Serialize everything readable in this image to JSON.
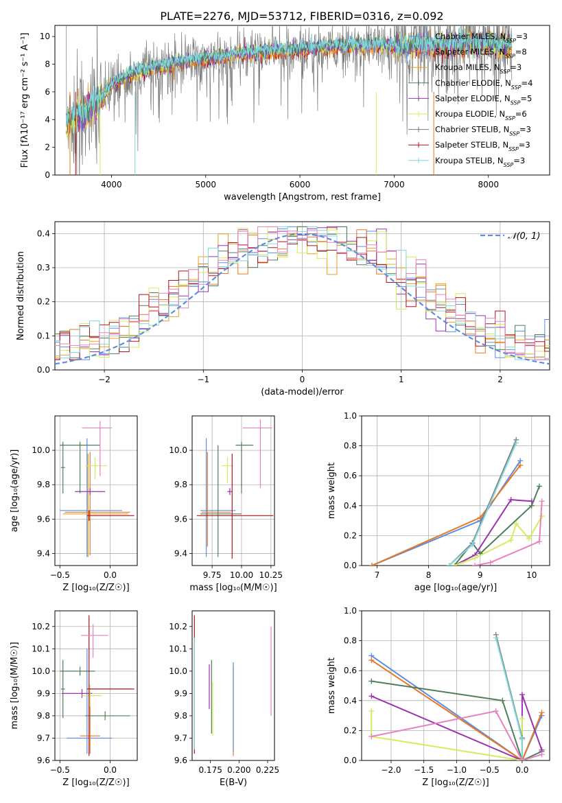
{
  "figure": {
    "title": "PLATE=2276, MJD=53712, FIBERID=0316, z=0.092"
  },
  "colors": {
    "chabrier_miles": "#5b8de0",
    "salpeter_miles": "#e87722",
    "kroupa_miles": "#e8a020",
    "chabrier_elodie": "#4f7d5a",
    "salpeter_elodie": "#9b30b0",
    "kroupa_elodie": "#d4ec5c",
    "chabrier_stelib": "#7a7a7a",
    "salpeter_stelib": "#b01020",
    "kroupa_stelib": "#7fd8dc",
    "pink": "#e880c0",
    "grid": "#b0b0b0",
    "gauss": "#5b8de0"
  },
  "chart_data": [
    {
      "id": "spectrum",
      "type": "line",
      "xlabel": "wavelength [Angstrom, rest frame]",
      "ylabel": "Flux [fλ10⁻¹⁷ erg cm⁻² s⁻¹ A⁻¹]",
      "xlim": [
        3400,
        8650
      ],
      "ylim": [
        0,
        10.8
      ],
      "xticks": [
        4000,
        5000,
        6000,
        7000,
        8000
      ],
      "yticks": [
        0,
        2,
        4,
        6,
        8,
        10
      ],
      "grid": false,
      "legend_position": "right",
      "legend": [
        "Chabrier MILES, N_SSP=3",
        "Salpeter MILES, N_SSP=8",
        "Kroupa MILES, N_SSP=3",
        "Chabrier ELODIE, N_SSP=4",
        "Salpeter ELODIE, N_SSP=5",
        "Kroupa ELODIE, N_SSP=6",
        "Chabrier STELIB, N_SSP=3",
        "Salpeter STELIB, N_SSP=3",
        "Kroupa STELIB, N_SSP=3"
      ],
      "continuum": {
        "x": [
          3520,
          3600,
          3700,
          3800,
          3900,
          4000,
          4100,
          4300,
          4500,
          4700,
          5000,
          5300,
          5600,
          6000,
          6400,
          6800,
          7200,
          7500,
          8000,
          8250
        ],
        "y": [
          3.8,
          4.2,
          4.5,
          5.0,
          5.6,
          6.5,
          7.0,
          7.5,
          7.8,
          8.1,
          8.4,
          8.7,
          8.9,
          9.1,
          9.3,
          9.4,
          9.3,
          9.4,
          9.5,
          9.3
        ]
      }
    },
    {
      "id": "residuals",
      "type": "bar",
      "xlabel": "(data-model)/error",
      "ylabel": "Normed distribution",
      "xlim": [
        -2.5,
        2.5
      ],
      "ylim": [
        0,
        0.435
      ],
      "xticks": [
        -2,
        -1,
        0,
        1,
        2
      ],
      "yticks": [
        0.0,
        0.1,
        0.2,
        0.3,
        0.4
      ],
      "grid": true,
      "legend": [
        "𝒩(0, 1)"
      ],
      "legend_position": "top-right",
      "bin_width": 0.1
    },
    {
      "id": "age_vs_Z",
      "type": "scatter",
      "xlabel": "Z [log₁₀(Z/Z☉)]",
      "ylabel": "age  [log₁₀(age/yr)]",
      "xlim": [
        -0.55,
        0.27
      ],
      "ylim": [
        9.33,
        10.2
      ],
      "xticks": [
        -0.5,
        0.0
      ],
      "yticks": [
        9.4,
        9.6,
        9.8,
        10.0
      ],
      "grid": true,
      "points": [
        {
          "series": "chabrier_miles",
          "x": -0.23,
          "xerr": [
            0.27,
            0.35
          ],
          "y": 9.65,
          "yerr": [
            0.27,
            0.42
          ]
        },
        {
          "series": "salpeter_miles",
          "x": -0.2,
          "xerr": [
            0.25,
            0.4
          ],
          "y": 9.64,
          "yerr": [
            0.25,
            0.35
          ]
        },
        {
          "series": "kroupa_miles",
          "x": -0.22,
          "xerr": [
            0.25,
            0.4
          ],
          "y": 9.63,
          "yerr": [
            0.25,
            0.35
          ]
        },
        {
          "series": "chabrier_elodie",
          "x": -0.3,
          "xerr": [
            0.2,
            0.2
          ],
          "y": 10.03,
          "yerr": [
            0.28,
            0.02
          ]
        },
        {
          "series": "chabrier_elodie",
          "x": -0.47,
          "xerr": [
            0.02,
            0.02
          ],
          "y": 9.9,
          "yerr": [
            0.15,
            0.15
          ]
        },
        {
          "series": "salpeter_elodie",
          "x": -0.2,
          "xerr": [
            0.15,
            0.15
          ],
          "y": 9.76,
          "yerr": [
            0.02,
            0.02
          ]
        },
        {
          "series": "kroupa_elodie",
          "x": -0.15,
          "xerr": [
            0.1,
            0.12
          ],
          "y": 9.91,
          "yerr": [
            0.08,
            0.05
          ]
        },
        {
          "series": "salpeter_stelib",
          "x": -0.21,
          "xerr": [
            0.02,
            0.45
          ],
          "y": 9.62,
          "yerr": [
            0.03,
            0.03
          ]
        },
        {
          "series": "pink",
          "x": -0.1,
          "xerr": [
            0.18,
            0.12
          ],
          "y": 10.13,
          "yerr": [
            0.28,
            0.04
          ]
        }
      ]
    },
    {
      "id": "age_vs_mass",
      "type": "scatter",
      "xlabel": "mass [log₁₀(M/M☉)]",
      "ylabel": "",
      "xlim": [
        9.58,
        10.28
      ],
      "ylim": [
        9.33,
        10.2
      ],
      "xticks": [
        9.75,
        10.0,
        10.25
      ],
      "yticks": [
        9.4,
        9.6,
        9.8,
        10.0
      ],
      "grid": true,
      "points": [
        {
          "series": "chabrier_miles",
          "x": 9.7,
          "xerr": [
            0.05,
            0.25
          ],
          "y": 9.65,
          "yerr": [
            0.27,
            0.42
          ]
        },
        {
          "series": "salpeter_miles",
          "x": 9.71,
          "xerr": [
            0.05,
            0.2
          ],
          "y": 9.64,
          "yerr": [
            0.2,
            0.35
          ]
        },
        {
          "series": "chabrier_elodie",
          "x": 9.8,
          "xerr": [
            0.15,
            0.2
          ],
          "y": 9.63,
          "yerr": [
            0.25,
            0.4
          ]
        },
        {
          "series": "chabrier_elodie",
          "x": 10.0,
          "xerr": [
            0.05,
            0.1
          ],
          "y": 10.03,
          "yerr": [
            0.28,
            0.02
          ]
        },
        {
          "series": "salpeter_elodie",
          "x": 9.9,
          "xerr": [
            0.02,
            0.02
          ],
          "y": 9.76,
          "yerr": [
            0.02,
            0.02
          ]
        },
        {
          "series": "kroupa_elodie",
          "x": 9.88,
          "xerr": [
            0.05,
            0.05
          ],
          "y": 9.91,
          "yerr": [
            0.1,
            0.05
          ]
        },
        {
          "series": "salpeter_stelib",
          "x": 9.92,
          "xerr": [
            0.3,
            0.35
          ],
          "y": 9.62,
          "yerr": [
            0.25,
            0.36
          ]
        },
        {
          "series": "pink",
          "x": 10.16,
          "xerr": [
            0.15,
            0.1
          ],
          "y": 10.13,
          "yerr": [
            0.35,
            0.05
          ]
        }
      ]
    },
    {
      "id": "massweight_vs_age",
      "type": "line",
      "xlabel": "age  [log₁₀(age/yr)]",
      "ylabel": "mass weight",
      "xlim": [
        6.7,
        10.35
      ],
      "ylim": [
        0,
        1.0
      ],
      "xticks": [
        7,
        8,
        9,
        10
      ],
      "yticks": [
        0.0,
        0.2,
        0.4,
        0.6,
        0.8,
        1.0
      ],
      "grid": true,
      "series": [
        {
          "name": "Chabrier MILES",
          "color": "chabrier_miles",
          "x": [
            6.9,
            9.0,
            9.78
          ],
          "y": [
            0.0,
            0.3,
            0.7
          ]
        },
        {
          "name": "Salpeter MILES",
          "color": "salpeter_miles",
          "x": [
            6.9,
            9.0,
            9.78
          ],
          "y": [
            0.0,
            0.32,
            0.67
          ]
        },
        {
          "name": "Chabrier ELODIE",
          "color": "chabrier_elodie",
          "x": [
            8.5,
            8.85,
            9.0,
            10.0,
            10.15
          ],
          "y": [
            0.0,
            0.15,
            0.08,
            0.4,
            0.53
          ]
        },
        {
          "name": "Salpeter ELODIE",
          "color": "salpeter_elodie",
          "x": [
            8.5,
            8.9,
            9.6,
            10.0
          ],
          "y": [
            0.0,
            0.07,
            0.44,
            0.43
          ]
        },
        {
          "name": "Kroupa ELODIE",
          "color": "kroupa_elodie",
          "x": [
            8.5,
            8.9,
            9.6,
            9.7,
            9.95,
            10.2
          ],
          "y": [
            0.0,
            0.05,
            0.17,
            0.28,
            0.18,
            0.33
          ]
        },
        {
          "name": "Chabrier STELIB",
          "color": "chabrier_stelib",
          "x": [
            8.4,
            8.85,
            9.7
          ],
          "y": [
            0.0,
            0.15,
            0.84
          ]
        },
        {
          "name": "Kroupa STELIB",
          "color": "kroupa_stelib",
          "x": [
            8.4,
            8.85,
            9.7
          ],
          "y": [
            0.0,
            0.14,
            0.82
          ]
        },
        {
          "name": "pink",
          "color": "pink",
          "x": [
            8.9,
            9.2,
            10.15,
            10.2
          ],
          "y": [
            0.0,
            0.02,
            0.16,
            0.43
          ]
        }
      ]
    },
    {
      "id": "mass_vs_Z",
      "type": "scatter",
      "xlabel": "Z [log₁₀(Z/Z☉)]",
      "ylabel": "mass [log₁₀(M/M☉)]",
      "xlim": [
        -0.55,
        0.27
      ],
      "ylim": [
        9.6,
        10.27
      ],
      "xticks": [
        -0.5,
        0.0
      ],
      "yticks": [
        9.6,
        9.7,
        9.8,
        9.9,
        10.0,
        10.1,
        10.2
      ],
      "grid": true,
      "points": [
        {
          "series": "chabrier_miles",
          "x": -0.23,
          "xerr": [
            0.2,
            0.25
          ],
          "y": 9.7,
          "yerr": [
            0.07,
            0.4
          ]
        },
        {
          "series": "salpeter_miles",
          "x": -0.2,
          "xerr": [
            0.1,
            0.1
          ],
          "y": 9.71,
          "yerr": [
            0.08,
            0.2
          ]
        },
        {
          "series": "chabrier_elodie",
          "x": -0.3,
          "xerr": [
            0.2,
            0.15
          ],
          "y": 10.0,
          "yerr": [
            0.02,
            0.02
          ]
        },
        {
          "series": "chabrier_elodie",
          "x": -0.47,
          "xerr": [
            0.02,
            0.02
          ],
          "y": 9.92,
          "yerr": [
            0.13,
            0.13
          ]
        },
        {
          "series": "salpeter_elodie",
          "x": -0.28,
          "xerr": [
            0.2,
            0.1
          ],
          "y": 9.9,
          "yerr": [
            0.02,
            0.02
          ]
        },
        {
          "series": "kroupa_elodie",
          "x": -0.2,
          "xerr": [
            0.08,
            0.12
          ],
          "y": 9.89,
          "yerr": [
            0.05,
            0.05
          ]
        },
        {
          "series": "chabrier_elodie",
          "x": -0.05,
          "xerr": [
            0.2,
            0.25
          ],
          "y": 9.8,
          "yerr": [
            0.02,
            0.02
          ]
        },
        {
          "series": "salpeter_stelib",
          "x": -0.21,
          "xerr": [
            0.02,
            0.45
          ],
          "y": 9.92,
          "yerr": [
            0.3,
            0.33
          ]
        },
        {
          "series": "pink",
          "x": -0.17,
          "xerr": [
            0.12,
            0.15
          ],
          "y": 10.16,
          "yerr": [
            0.1,
            0.05
          ]
        }
      ]
    },
    {
      "id": "mass_vs_ebv",
      "type": "scatter",
      "xlabel": "E(B-V)",
      "ylabel": "",
      "xlim": [
        0.159,
        0.231
      ],
      "ylim": [
        9.6,
        10.27
      ],
      "xticks": [
        0.175,
        0.2,
        0.225
      ],
      "yticks": [
        9.6,
        9.7,
        9.8,
        9.9,
        10.0,
        10.1,
        10.2
      ],
      "grid": false,
      "points": [
        {
          "series": "salpeter_stelib",
          "x": 0.161,
          "y": 9.95,
          "yerr": [
            0.32,
            0.3
          ]
        },
        {
          "series": "kroupa_stelib",
          "x": 0.161,
          "y": 9.85,
          "yerr": [
            0.2,
            0.3
          ]
        },
        {
          "series": "salpeter_elodie",
          "x": 0.174,
          "y": 9.93,
          "yerr": [
            0.1,
            0.1
          ]
        },
        {
          "series": "chabrier_elodie",
          "x": 0.176,
          "y": 9.85,
          "yerr": [
            0.13,
            0.2
          ]
        },
        {
          "series": "kroupa_elodie",
          "x": 0.177,
          "y": 9.83,
          "yerr": [
            0.12,
            0.12
          ]
        },
        {
          "series": "salpeter_miles",
          "x": 0.195,
          "y": 9.82,
          "yerr": [
            0.2,
            0.2
          ]
        },
        {
          "series": "chabrier_miles",
          "x": 0.195,
          "y": 9.86,
          "yerr": [
            0.22,
            0.18
          ]
        },
        {
          "series": "pink",
          "x": 0.228,
          "y": 10.0,
          "yerr": [
            0.2,
            0.2
          ]
        }
      ]
    },
    {
      "id": "massweight_vs_Z",
      "type": "line",
      "xlabel": "Z [log₁₀(Z/Z☉)]",
      "ylabel": "mass weight",
      "xlim": [
        -2.45,
        0.42
      ],
      "ylim": [
        0,
        1.0
      ],
      "xticks": [
        -2.0,
        -1.5,
        -1.0,
        -0.5,
        0.0
      ],
      "yticks": [
        0.0,
        0.2,
        0.4,
        0.6,
        0.8,
        1.0
      ],
      "grid": true,
      "series": [
        {
          "name": "Chabrier MILES",
          "color": "chabrier_miles",
          "x": [
            -2.3,
            0.0,
            0.3
          ],
          "y": [
            0.7,
            0.0,
            0.3
          ]
        },
        {
          "name": "Salpeter MILES",
          "color": "salpeter_miles",
          "x": [
            -2.3,
            0.0,
            0.3
          ],
          "y": [
            0.67,
            0.0,
            0.32
          ]
        },
        {
          "name": "Chabrier ELODIE",
          "color": "chabrier_elodie",
          "x": [
            -2.3,
            -0.3,
            0.0,
            0.3
          ],
          "y": [
            0.53,
            0.4,
            0.0,
            0.06
          ]
        },
        {
          "name": "Salpeter ELODIE",
          "color": "salpeter_elodie",
          "x": [
            -2.3,
            0.0,
            0.0,
            0.3
          ],
          "y": [
            0.43,
            0.0,
            0.44,
            0.07
          ]
        },
        {
          "name": "Kroupa ELODIE",
          "color": "kroupa_elodie",
          "x": [
            -2.3,
            -2.3,
            0.0,
            0.0
          ],
          "y": [
            0.33,
            0.16,
            0.0,
            0.28
          ]
        },
        {
          "name": "Chabrier STELIB",
          "color": "chabrier_stelib",
          "x": [
            -0.4,
            0.0,
            0.0
          ],
          "y": [
            0.84,
            0.15,
            0.0
          ]
        },
        {
          "name": "Kroupa STELIB",
          "color": "kroupa_stelib",
          "x": [
            -0.4,
            0.0,
            0.0
          ],
          "y": [
            0.82,
            0.14,
            0.0
          ]
        },
        {
          "name": "pink",
          "color": "pink",
          "x": [
            -2.3,
            -0.4,
            0.0,
            0.3
          ],
          "y": [
            0.16,
            0.33,
            0.0,
            0.04
          ]
        }
      ]
    }
  ]
}
